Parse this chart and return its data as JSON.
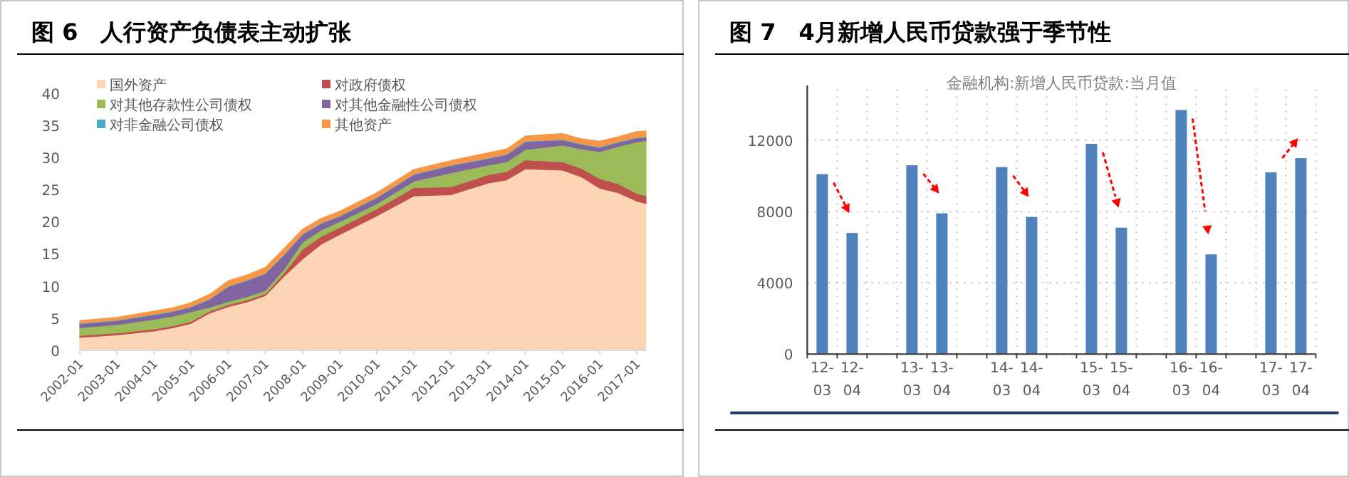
{
  "chart_data": [
    {
      "type": "area",
      "title": "图 6　人行资产负债表主动扩张",
      "stacked": true,
      "legend": "top left",
      "grid": false,
      "x": [
        "2002-01",
        "2003-01",
        "2004-01",
        "2004-07",
        "2005-01",
        "2005-07",
        "2006-01",
        "2006-07",
        "2007-01",
        "2007-07",
        "2008-01",
        "2008-07",
        "2009-01",
        "2010-01",
        "2011-01",
        "2012-01",
        "2013-01",
        "2013-07",
        "2014-01",
        "2015-01",
        "2015-07",
        "2016-01",
        "2016-07",
        "2017-01",
        "2017-04"
      ],
      "series": [
        {
          "name": "国外资产",
          "color": "#fcd5b4",
          "values": [
            2.0,
            2.4,
            3.0,
            3.5,
            4.2,
            5.8,
            6.8,
            7.5,
            8.5,
            11.5,
            14.2,
            16.5,
            18.0,
            20.9,
            24.0,
            24.2,
            26.0,
            26.5,
            28.2,
            28.0,
            27.0,
            25.2,
            24.5,
            23.2,
            22.8
          ]
        },
        {
          "name": "对政府债权",
          "color": "#c0504d",
          "values": [
            0.3,
            0.3,
            0.3,
            0.3,
            0.3,
            0.3,
            0.3,
            0.3,
            0.3,
            0.5,
            1.5,
            1.2,
            1.1,
            1.1,
            1.3,
            1.2,
            1.3,
            1.3,
            1.4,
            1.3,
            1.3,
            1.5,
            1.4,
            1.2,
            1.2
          ]
        },
        {
          "name": "对其他存款性公司债权",
          "color": "#9bbb59",
          "values": [
            1.2,
            1.3,
            1.5,
            1.5,
            1.5,
            0.6,
            0.5,
            0.5,
            0.5,
            0.6,
            1.1,
            1.0,
            0.9,
            0.8,
            1.0,
            2.2,
            1.5,
            1.5,
            1.6,
            2.6,
            3.0,
            4.2,
            5.8,
            8.0,
            8.6
          ]
        },
        {
          "name": "对其他金融性公司债权",
          "color": "#8064a2",
          "values": [
            0.6,
            0.6,
            0.7,
            0.7,
            0.7,
            1.2,
            2.3,
            2.5,
            2.6,
            2.2,
            1.2,
            1.0,
            0.8,
            0.9,
            1.0,
            1.1,
            1.0,
            1.1,
            1.2,
            0.8,
            0.7,
            0.6,
            0.6,
            0.6,
            0.5
          ]
        },
        {
          "name": "对非金融公司债权",
          "color": "#4bacc6",
          "values": [
            0.1,
            0.1,
            0.1,
            0.1,
            0.1,
            0.1,
            0.1,
            0.1,
            0.1,
            0.1,
            0.1,
            0.1,
            0.1,
            0.1,
            0.1,
            0.1,
            0.1,
            0.1,
            0.1,
            0.1,
            0.1,
            0.1,
            0.1,
            0.1,
            0.1
          ]
        },
        {
          "name": "其他资产",
          "color": "#f79646",
          "values": [
            0.4,
            0.4,
            0.5,
            0.5,
            0.6,
            0.7,
            0.8,
            0.8,
            0.9,
            0.9,
            0.7,
            0.7,
            0.7,
            0.7,
            0.7,
            0.7,
            0.8,
            0.8,
            0.8,
            0.9,
            0.8,
            0.9,
            0.8,
            0.9,
            0.9
          ]
        }
      ],
      "xlim": [
        "2002-01",
        "2017-04"
      ],
      "xticks": [
        "2002-01",
        "2003-01",
        "2004-01",
        "2005-01",
        "2006-01",
        "2007-01",
        "2008-01",
        "2009-01",
        "2010-01",
        "2011-01",
        "2012-01",
        "2013-01",
        "2014-01",
        "2015-01",
        "2016-01",
        "2017-01"
      ],
      "ylim": [
        0,
        40
      ],
      "yticks": [
        0,
        5,
        10,
        15,
        20,
        25,
        30,
        35,
        40
      ]
    },
    {
      "type": "bar",
      "title": "图 7　4月新增人民币贷款强于季节性",
      "subtitle": "金融机构:新增人民币贷款:当月值",
      "grid": true,
      "categories": [
        "12-03",
        "12-04",
        null,
        "13-03",
        "13-04",
        null,
        "14-03",
        "14-04",
        null,
        "15-03",
        "15-04",
        null,
        "16-03",
        "16-04",
        null,
        "17-03",
        "17-04"
      ],
      "values": [
        10100,
        6800,
        null,
        10600,
        7900,
        null,
        10500,
        7700,
        null,
        11800,
        7100,
        null,
        13700,
        5600,
        null,
        10200,
        11000
      ],
      "color": "#4f81bd",
      "ylim": [
        0,
        15000
      ],
      "yticks": [
        0,
        4000,
        8000,
        12000
      ]
    }
  ]
}
